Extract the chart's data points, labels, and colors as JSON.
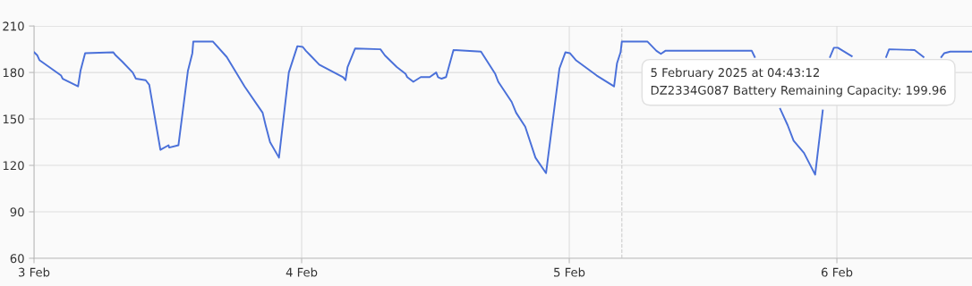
{
  "chart_data": {
    "type": "line",
    "xlim": [
      "2025-02-03T00:00",
      "2025-02-06T12:07"
    ],
    "xticks": [
      {
        "value": "2025-02-03",
        "label": "3 Feb"
      },
      {
        "value": "2025-02-04",
        "label": "4 Feb"
      },
      {
        "value": "2025-02-05",
        "label": "5 Feb"
      },
      {
        "value": "2025-02-06",
        "label": "6 Feb"
      }
    ],
    "ylim": [
      60,
      210
    ],
    "yticks": [
      60,
      90,
      120,
      150,
      180,
      210
    ],
    "grid": true,
    "marker": "none",
    "line_style": "solid",
    "ref_lines": [
      {
        "axis": "x",
        "value": "2025-02-05T04:43",
        "color": "#cccccc",
        "line_style": "dashed"
      }
    ],
    "annotations": [
      "5 February 2025 at 04:43:12\nDZ2334G087 Battery Remaining Capacity: 199.96"
    ],
    "series": [
      {
        "color": "#4a70d9",
        "x": [
          "2025-02-03T00:01",
          "2025-02-03T00:18",
          "2025-02-03T00:29",
          "2025-02-03T02:26",
          "2025-02-03T02:34",
          "2025-02-03T03:57",
          "2025-02-03T04:10",
          "2025-02-03T04:35",
          "2025-02-03T07:07",
          "2025-02-03T07:20",
          "2025-02-03T07:55",
          "2025-02-03T08:51",
          "2025-02-03T09:08",
          "2025-02-03T10:01",
          "2025-02-03T10:20",
          "2025-02-03T11:20",
          "2025-02-03T12:04",
          "2025-02-03T12:07",
          "2025-02-03T12:57",
          "2025-02-03T13:48",
          "2025-02-03T14:12",
          "2025-02-03T14:17",
          "2025-02-03T16:02",
          "2025-02-03T17:17",
          "2025-02-03T18:53",
          "2025-02-03T20:30",
          "2025-02-03T20:46",
          "2025-02-03T21:10",
          "2025-02-03T21:58",
          "2025-02-03T22:51",
          "2025-02-03T23:37",
          "2025-02-04T00:06",
          "2025-02-04T00:23",
          "2025-02-04T00:47",
          "2025-02-04T01:35",
          "2025-02-04T03:43",
          "2025-02-04T03:56",
          "2025-02-04T04:07",
          "2025-02-04T04:48",
          "2025-02-04T07:04",
          "2025-02-04T07:28",
          "2025-02-04T08:32",
          "2025-02-04T09:20",
          "2025-02-04T09:28",
          "2025-02-04T10:01",
          "2025-02-04T10:41",
          "2025-02-04T11:29",
          "2025-02-04T12:04",
          "2025-02-04T12:14",
          "2025-02-04T12:33",
          "2025-02-04T12:57",
          "2025-02-04T13:37",
          "2025-02-04T16:05",
          "2025-02-04T17:22",
          "2025-02-04T17:38",
          "2025-02-04T18:50",
          "2025-02-04T19:14",
          "2025-02-04T20:03",
          "2025-02-04T20:58",
          "2025-02-04T21:55",
          "2025-02-04T23:07",
          "2025-02-04T23:39",
          "2025-02-05T00:03",
          "2025-02-05T00:35",
          "2025-02-05T02:28",
          "2025-02-05T04:01",
          "2025-02-05T04:17",
          "2025-02-05T04:36",
          "2025-02-05T04:43",
          "2025-02-05T07:00",
          "2025-02-05T07:49",
          "2025-02-05T08:13",
          "2025-02-05T08:37",
          "2025-02-05T16:22",
          "2025-02-05T16:38",
          "2025-02-05T17:30",
          "2025-02-05T18:55",
          "2025-02-05T19:35",
          "2025-02-05T20:07",
          "2025-02-05T21:03",
          "2025-02-05T22:03",
          "2025-02-05T22:44",
          "2025-02-05T22:50",
          "2025-02-05T23:23",
          "2025-02-05T23:44",
          "2025-02-06T00:05",
          "2025-02-06T01:20",
          "2025-02-06T02:30",
          "2025-02-06T04:25",
          "2025-02-06T04:41",
          "2025-02-06T06:58",
          "2025-02-06T07:46",
          "2025-02-06T08:15",
          "2025-02-06T09:22",
          "2025-02-06T09:38",
          "2025-02-06T10:10",
          "2025-02-06T12:07"
        ],
        "values": [
          193,
          191,
          188,
          178,
          176,
          171,
          181,
          192.5,
          193,
          191,
          187,
          180,
          176,
          175,
          172,
          130,
          133,
          131.5,
          133,
          181,
          192.5,
          200,
          200,
          190,
          171,
          154,
          146,
          135,
          125,
          180,
          197,
          196.5,
          194,
          191,
          185,
          177,
          175,
          183.5,
          195.5,
          195,
          191,
          183.5,
          179,
          177,
          174,
          177,
          177,
          180,
          177,
          176,
          177,
          194.5,
          193.5,
          179,
          174,
          161,
          154,
          145,
          125,
          115,
          182.5,
          193,
          192.5,
          188,
          178,
          171,
          186,
          193,
          200,
          200,
          194,
          192,
          194,
          194,
          190,
          null,
          156.5,
          146,
          136,
          128,
          114,
          155.5,
          null,
          190,
          196,
          196,
          190.5,
          null,
          190,
          195,
          194.5,
          190,
          null,
          190,
          192.5,
          193.5,
          193.5
        ]
      }
    ]
  }
}
